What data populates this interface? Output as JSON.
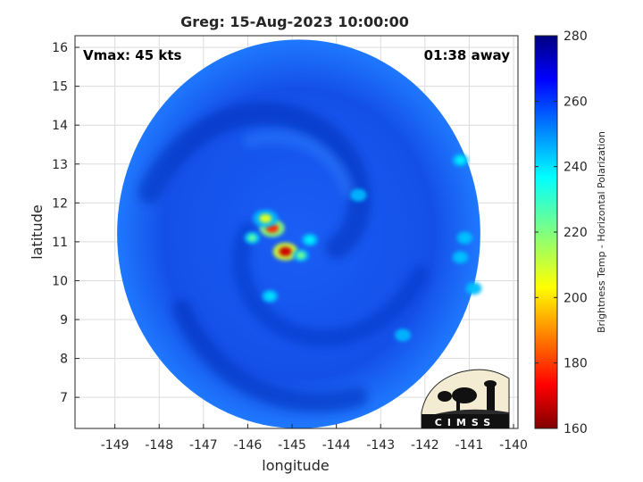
{
  "chart_data": {
    "type": "heatmap",
    "title": "Greg: 15-Aug-2023 10:00:00",
    "xlabel": "longitude",
    "ylabel": "latitude",
    "xlim": [
      -149.9,
      -139.9
    ],
    "ylim": [
      6.2,
      16.3
    ],
    "xticks": [
      "-149",
      "-148",
      "-147",
      "-146",
      "-145",
      "-144",
      "-143",
      "-142",
      "-141",
      "-140"
    ],
    "xtick_values": [
      -149,
      -148,
      -147,
      -146,
      -145,
      -144,
      -143,
      -142,
      -141,
      -140
    ],
    "yticks": [
      "7",
      "8",
      "9",
      "10",
      "11",
      "12",
      "13",
      "14",
      "15",
      "16"
    ],
    "ytick_values": [
      7,
      8,
      9,
      10,
      11,
      12,
      13,
      14,
      15,
      16
    ],
    "grid": true,
    "annotations": {
      "vmax": "Vmax: 45 kts",
      "time_away": "01:38 away"
    },
    "colorbar": {
      "label": "Brightness Temp - Horizontal Polarization",
      "range": [
        160,
        280
      ],
      "ticks": [
        "280",
        "260",
        "240",
        "220",
        "200",
        "180",
        "160"
      ],
      "tick_values": [
        280,
        260,
        240,
        220,
        200,
        180,
        160
      ]
    },
    "swath": {
      "center": [
        -144.85,
        11.2
      ],
      "lon_radius": 4.1,
      "lat_radius": 5.0,
      "background_value": 262
    },
    "features": [
      {
        "lon": -145.15,
        "lat": 10.75,
        "value": 168
      },
      {
        "lon": -145.45,
        "lat": 11.35,
        "value": 178
      },
      {
        "lon": -145.6,
        "lat": 11.6,
        "value": 208
      },
      {
        "lon": -145.9,
        "lat": 11.1,
        "value": 225
      },
      {
        "lon": -144.8,
        "lat": 10.65,
        "value": 222
      },
      {
        "lon": -144.6,
        "lat": 11.05,
        "value": 238
      },
      {
        "lon": -145.5,
        "lat": 9.6,
        "value": 240
      },
      {
        "lon": -141.2,
        "lat": 13.1,
        "value": 238
      },
      {
        "lon": -141.1,
        "lat": 11.1,
        "value": 244
      },
      {
        "lon": -141.2,
        "lat": 10.6,
        "value": 244
      },
      {
        "lon": -140.9,
        "lat": 9.8,
        "value": 244
      },
      {
        "lon": -142.5,
        "lat": 8.6,
        "value": 246
      },
      {
        "lon": -143.5,
        "lat": 12.2,
        "value": 246
      }
    ]
  },
  "logo": {
    "text": "CIMSS"
  }
}
